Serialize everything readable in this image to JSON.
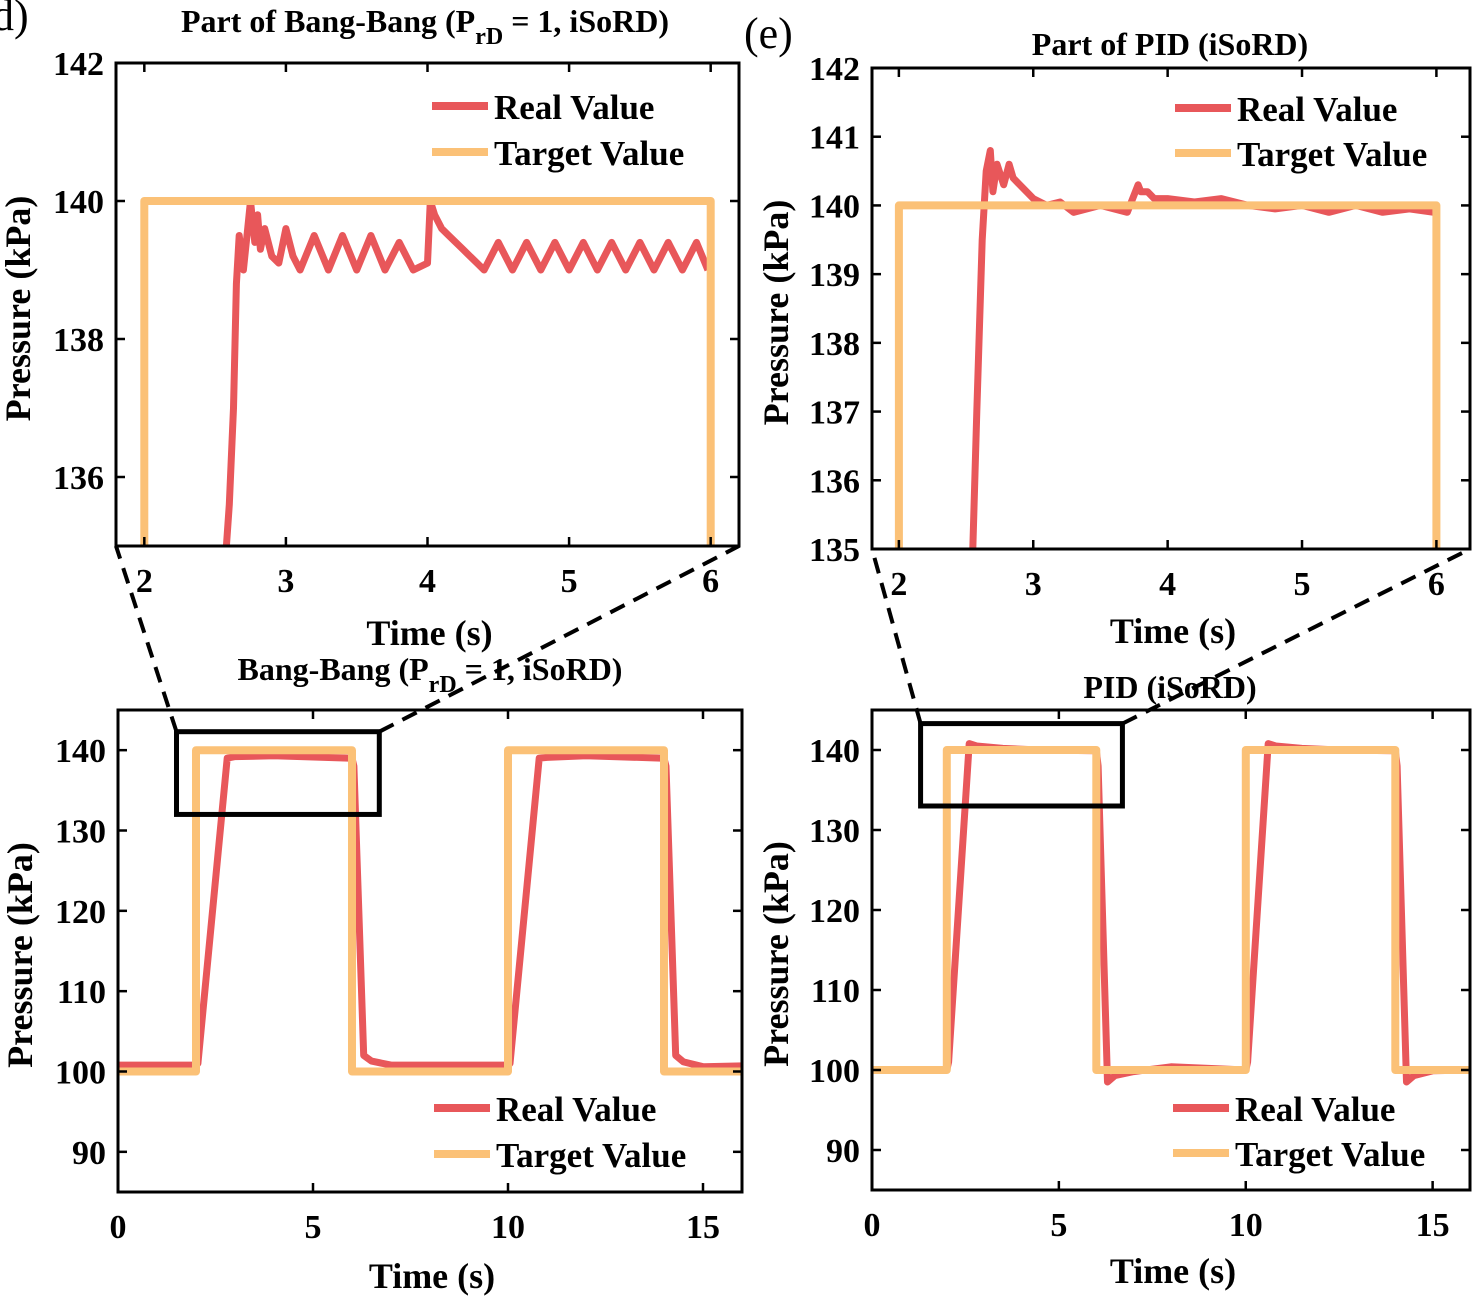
{
  "panel_labels": {
    "d": "d)",
    "e": "(e)"
  },
  "colors": {
    "real": "#E8575A",
    "target": "#FBC177"
  },
  "chart_data": [
    {
      "id": "d-zoom",
      "type": "line",
      "title": "Part of Bang-Bang (P",
      "title_sub": "rD",
      "title_tail": " = 1, iSoRD)",
      "xlabel": "Time (s)",
      "ylabel": "Pressure (kPa)",
      "xlim": [
        1.8,
        6.2
      ],
      "ylim": [
        135,
        142
      ],
      "xticks": [
        2,
        3,
        4,
        5,
        6
      ],
      "yticks": [
        136,
        138,
        140,
        142
      ],
      "legend": [
        "Real Value",
        "Target Value"
      ],
      "legend_position": "top-right",
      "series": [
        {
          "name": "Real Value",
          "x": [
            2.58,
            2.6,
            2.63,
            2.65,
            2.67,
            2.7,
            2.73,
            2.75,
            2.78,
            2.8,
            2.82,
            2.85,
            2.9,
            2.95,
            3.0,
            3.05,
            3.1,
            3.2,
            3.3,
            3.4,
            3.5,
            3.6,
            3.7,
            3.8,
            3.9,
            4.0,
            4.02,
            4.05,
            4.1,
            4.15,
            4.2,
            4.25,
            4.3,
            4.35,
            4.4,
            4.5,
            4.6,
            4.7,
            4.8,
            4.9,
            5.0,
            5.1,
            5.2,
            5.3,
            5.4,
            5.5,
            5.6,
            5.7,
            5.8,
            5.9,
            5.98
          ],
          "y": [
            135,
            135.6,
            137.0,
            138.8,
            139.5,
            139.0,
            139.6,
            140.0,
            139.4,
            139.8,
            139.3,
            139.6,
            139.2,
            139.1,
            139.6,
            139.2,
            139.0,
            139.5,
            139.0,
            139.5,
            139.0,
            139.5,
            139.0,
            139.4,
            139.0,
            139.1,
            140.0,
            139.8,
            139.6,
            139.5,
            139.4,
            139.3,
            139.2,
            139.1,
            139.0,
            139.4,
            139.0,
            139.4,
            139.0,
            139.4,
            139.0,
            139.4,
            139.0,
            139.4,
            139.0,
            139.4,
            139.0,
            139.4,
            139.0,
            139.4,
            139.0
          ]
        },
        {
          "name": "Target Value",
          "x": [
            2.0,
            2.0,
            6.0,
            6.0
          ],
          "y": [
            135,
            140,
            140,
            135
          ]
        }
      ]
    },
    {
      "id": "e-zoom",
      "type": "line",
      "title": "Part of PID (iSoRD)",
      "xlabel": "Time (s)",
      "ylabel": "Pressure (kPa)",
      "xlim": [
        1.8,
        6.25
      ],
      "ylim": [
        135,
        142
      ],
      "xticks": [
        2,
        3,
        4,
        5,
        6
      ],
      "yticks": [
        135,
        136,
        137,
        138,
        139,
        140,
        141,
        142
      ],
      "legend": [
        "Real Value",
        "Target Value"
      ],
      "legend_position": "top-right",
      "series": [
        {
          "name": "Real Value",
          "x": [
            2.55,
            2.58,
            2.62,
            2.65,
            2.68,
            2.7,
            2.73,
            2.78,
            2.82,
            2.85,
            2.9,
            3.0,
            3.1,
            3.2,
            3.3,
            3.5,
            3.7,
            3.78,
            3.8,
            3.85,
            3.9,
            4.0,
            4.2,
            4.4,
            4.6,
            4.8,
            5.0,
            5.2,
            5.4,
            5.6,
            5.8,
            5.98
          ],
          "y": [
            135,
            137.0,
            139.5,
            140.5,
            140.8,
            140.2,
            140.6,
            140.3,
            140.6,
            140.4,
            140.3,
            140.1,
            140.0,
            140.05,
            139.9,
            140.0,
            139.9,
            140.3,
            140.2,
            140.2,
            140.1,
            140.1,
            140.05,
            140.1,
            140.0,
            139.95,
            140.0,
            139.9,
            140.0,
            139.9,
            139.95,
            139.9
          ]
        },
        {
          "name": "Target Value",
          "x": [
            2.0,
            2.0,
            6.0,
            6.0
          ],
          "y": [
            135,
            140,
            140,
            135
          ]
        }
      ]
    },
    {
      "id": "d-full",
      "type": "line",
      "title": "Bang-Bang (P",
      "title_sub": "rD",
      "title_tail": " = 1, iSoRD)",
      "xlabel": "Time (s)",
      "ylabel": "Pressure (kPa)",
      "xlim": [
        0,
        16
      ],
      "ylim": [
        85,
        145
      ],
      "xticks": [
        0,
        5,
        10,
        15
      ],
      "yticks": [
        90,
        100,
        110,
        120,
        130,
        140
      ],
      "legend": [
        "Real Value",
        "Target Value"
      ],
      "legend_position": "bottom-right",
      "zoom_box": {
        "x": [
          1.5,
          6.7
        ],
        "y": [
          132,
          142.3
        ]
      },
      "series": [
        {
          "name": "Real Value",
          "x": [
            0,
            2.0,
            2.05,
            2.8,
            3.0,
            4.0,
            6.0,
            6.05,
            6.3,
            6.5,
            7.0,
            10.0,
            10.05,
            10.8,
            11.0,
            12.0,
            14.0,
            14.05,
            14.3,
            14.5,
            15.0,
            16.0
          ],
          "y": [
            100.8,
            100.8,
            101,
            139,
            139.2,
            139.3,
            139.0,
            138,
            102,
            101.3,
            100.8,
            100.8,
            101,
            139,
            139.1,
            139.3,
            139.0,
            138,
            102,
            101.2,
            100.6,
            100.7
          ]
        },
        {
          "name": "Target Value",
          "x": [
            0,
            2.0,
            2.0,
            6.0,
            6.0,
            10.0,
            10.0,
            14.0,
            14.0,
            16.0
          ],
          "y": [
            100,
            100,
            140,
            140,
            100,
            100,
            140,
            140,
            100,
            100
          ]
        }
      ]
    },
    {
      "id": "e-full",
      "type": "line",
      "title": "PID (iSoRD)",
      "xlabel": "Time (s)",
      "ylabel": "Pressure (kPa)",
      "xlim": [
        0,
        16
      ],
      "ylim": [
        85,
        145
      ],
      "xticks": [
        0,
        5,
        10,
        15
      ],
      "yticks": [
        90,
        100,
        110,
        120,
        130,
        140
      ],
      "legend": [
        "Real Value",
        "Target Value"
      ],
      "legend_position": "bottom-right",
      "zoom_box": {
        "x": [
          1.3,
          6.7
        ],
        "y": [
          133,
          143.3
        ]
      },
      "series": [
        {
          "name": "Real Value",
          "x": [
            0,
            2.0,
            2.05,
            2.6,
            2.8,
            3.5,
            4.5,
            6.0,
            6.05,
            6.3,
            6.5,
            7.0,
            8.0,
            9.0,
            10.0,
            10.05,
            10.6,
            10.8,
            11.5,
            12.5,
            14.0,
            14.05,
            14.3,
            14.5,
            15.0,
            16.0
          ],
          "y": [
            100,
            100,
            101,
            140.8,
            140.5,
            140.2,
            140.0,
            139.9,
            138,
            98.5,
            99.3,
            99.8,
            100.4,
            100.2,
            100,
            101,
            140.8,
            140.5,
            140.2,
            140.0,
            139.9,
            138,
            98.5,
            99.3,
            99.9,
            100
          ]
        },
        {
          "name": "Target Value",
          "x": [
            0,
            2.0,
            2.0,
            6.0,
            6.0,
            10.0,
            10.0,
            14.0,
            14.0,
            16.0
          ],
          "y": [
            100,
            100,
            140,
            140,
            100,
            100,
            140,
            140,
            100,
            100
          ]
        }
      ]
    }
  ]
}
